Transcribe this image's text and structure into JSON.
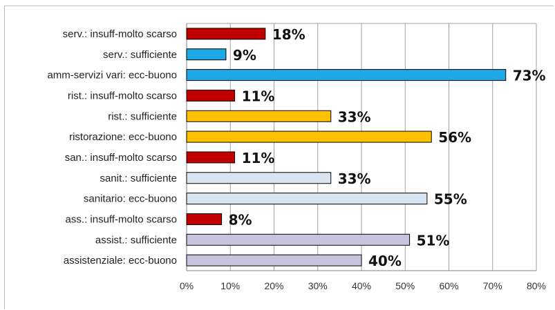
{
  "chart_data": {
    "type": "bar",
    "orientation": "horizontal",
    "title": "",
    "xlabel": "",
    "ylabel": "",
    "xlim": [
      0,
      80
    ],
    "x_ticks": [
      "0%",
      "10%",
      "20%",
      "30%",
      "40%",
      "50%",
      "60%",
      "70%",
      "80%"
    ],
    "grid": "vertical",
    "legend": "none",
    "categories": [
      "serv.: insuff-molto scarso",
      "serv.: sufficiente",
      "amm-servizi vari: ecc-buono",
      "rist.: insuff-molto scarso",
      "rist.: sufficiente",
      "ristorazione: ecc-buono",
      "san.: insuff-molto scarso",
      "sanit.: sufficiente",
      "sanitario: ecc-buono",
      "ass.: insuff-molto scarso",
      "assist.: sufficiente",
      "assistenziale: ecc-buono"
    ],
    "values": [
      18,
      9,
      73,
      11,
      33,
      56,
      11,
      33,
      55,
      8,
      51,
      40
    ],
    "data_labels": [
      "18%",
      "9%",
      "73%",
      "11%",
      "33%",
      "56%",
      "11%",
      "33%",
      "55%",
      "8%",
      "51%",
      "40%"
    ],
    "colors": [
      "#c00000",
      "#1ea9e6",
      "#1ea9e6",
      "#c00000",
      "#ffc000",
      "#ffc000",
      "#c00000",
      "#d8e4f0",
      "#d8e4f0",
      "#c00000",
      "#c8c4e0",
      "#c8c4e0"
    ]
  }
}
